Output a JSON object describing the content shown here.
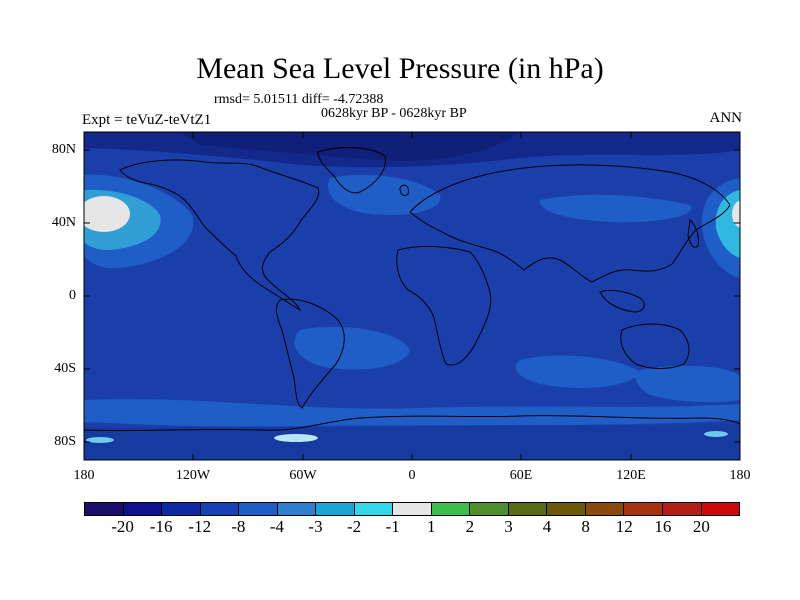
{
  "title": "Mean Sea Level Pressure (in hPa)",
  "stats_line": "rmsd= 5.01511 diff= -4.72388",
  "period_line": "0628kyr BP - 0628kyr BP",
  "experiment_label": "Expt = teVuZ-teVtZ1",
  "season_label": "ANN",
  "colors": {
    "ocean_base": "#1a3faa",
    "land_base": "#1c44b0",
    "polar_dark": "#12288a",
    "coast_line": "#000000"
  },
  "latitude_ticks": [
    "80N",
    "40N",
    "0",
    "40S",
    "80S"
  ],
  "longitude_ticks": [
    "180",
    "120W",
    "60W",
    "0",
    "60E",
    "120E",
    "180"
  ],
  "colorbar": {
    "colors": [
      "#1b0f6b",
      "#11118f",
      "#0d2aa3",
      "#1543b5",
      "#1e5ec6",
      "#2f7fcf",
      "#19a6d6",
      "#33d8e8",
      "#e6e6e6",
      "#3cbf4a",
      "#4f8f2c",
      "#5b6b15",
      "#6a5a0a",
      "#8a4a0c",
      "#a8320e",
      "#b41e14",
      "#cc0a0a"
    ],
    "labels": [
      "-20",
      "-16",
      "-12",
      "-8",
      "-4",
      "-3",
      "-2",
      "-1",
      "1",
      "2",
      "3",
      "4",
      "8",
      "12",
      "16",
      "20"
    ]
  }
}
